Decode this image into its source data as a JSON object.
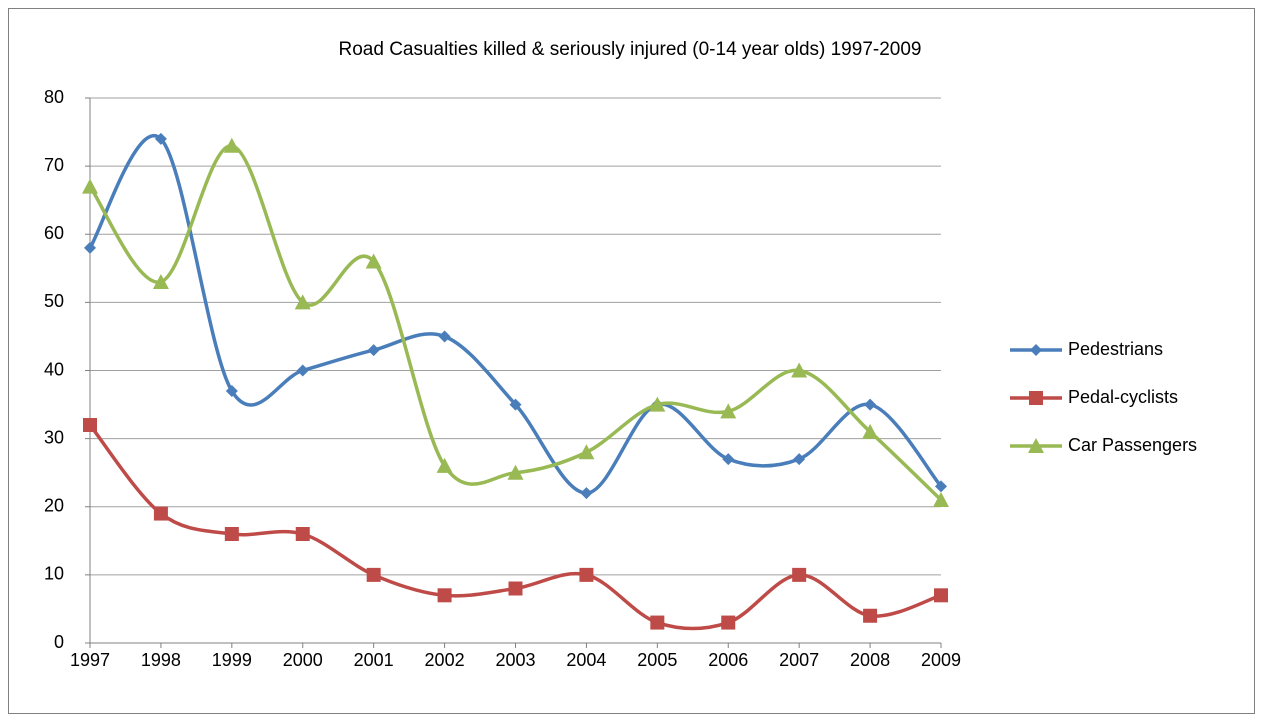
{
  "chart_data": {
    "type": "line",
    "title": "Road Casualties killed & seriously injured (0-14 year olds) 1997-2009",
    "x": [
      1997,
      1998,
      1999,
      2000,
      2001,
      2002,
      2003,
      2004,
      2005,
      2006,
      2007,
      2008,
      2009
    ],
    "xlim": [
      1997,
      2009
    ],
    "xticks": [
      1997,
      1998,
      1999,
      2000,
      2001,
      2002,
      2003,
      2004,
      2005,
      2006,
      2007,
      2008,
      2009
    ],
    "ylim": [
      0,
      80
    ],
    "yticks": [
      0,
      10,
      20,
      30,
      40,
      50,
      60,
      70,
      80
    ],
    "grid": true,
    "smooth": true,
    "legend": "right",
    "series": [
      {
        "name": "Pedestrians",
        "color": "#4a7ebb",
        "marker": "diamond",
        "values": [
          58,
          74,
          37,
          40,
          43,
          45,
          35,
          22,
          35,
          27,
          27,
          35,
          23
        ]
      },
      {
        "name": "Pedal-cyclists",
        "color": "#be4b48",
        "marker": "square",
        "values": [
          32,
          19,
          16,
          16,
          10,
          7,
          8,
          10,
          3,
          3,
          10,
          4,
          7
        ]
      },
      {
        "name": "Car Passengers",
        "color": "#98b954",
        "marker": "triangle",
        "values": [
          67,
          53,
          73,
          50,
          56,
          26,
          25,
          28,
          35,
          34,
          40,
          31,
          21
        ]
      }
    ]
  }
}
